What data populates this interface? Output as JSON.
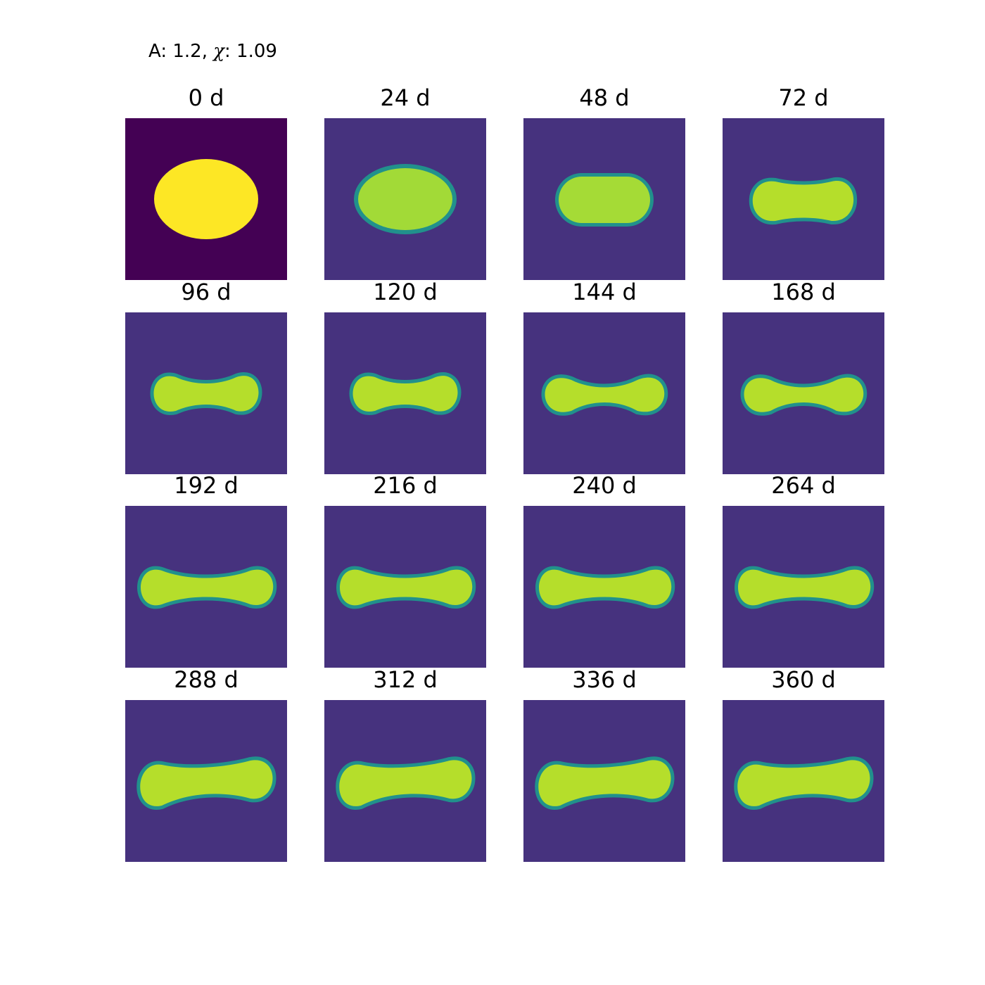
{
  "figure": {
    "title_prefix": "A: 1.2, ",
    "title_chi_symbol": "χ",
    "title_suffix": ": 1.09",
    "colormap": "viridis",
    "colors": {
      "background_initial": "#440154",
      "blob_initial": "#fde725",
      "background_evolved": "#46327e",
      "blob_evolved": "#b5de2b",
      "rim": "#21918c"
    },
    "panels": [
      {
        "label": "0 d",
        "shape": "ellipse"
      },
      {
        "label": "24 d",
        "shape": "ellipse-soft"
      },
      {
        "label": "48 d",
        "shape": "stadium"
      },
      {
        "label": "72 d",
        "shape": "stadium-pinched"
      },
      {
        "label": "96 d",
        "shape": "peanut"
      },
      {
        "label": "120 d",
        "shape": "peanut"
      },
      {
        "label": "144 d",
        "shape": "dumbbell"
      },
      {
        "label": "168 d",
        "shape": "dumbbell"
      },
      {
        "label": "192 d",
        "shape": "dumbbell-long"
      },
      {
        "label": "216 d",
        "shape": "dumbbell-long"
      },
      {
        "label": "240 d",
        "shape": "dumbbell-long"
      },
      {
        "label": "264 d",
        "shape": "dumbbell-long"
      },
      {
        "label": "288 d",
        "shape": "dumbbell-curved"
      },
      {
        "label": "312 d",
        "shape": "dumbbell-curved"
      },
      {
        "label": "336 d",
        "shape": "dumbbell-curved"
      },
      {
        "label": "360 d",
        "shape": "dumbbell-curved"
      }
    ]
  }
}
